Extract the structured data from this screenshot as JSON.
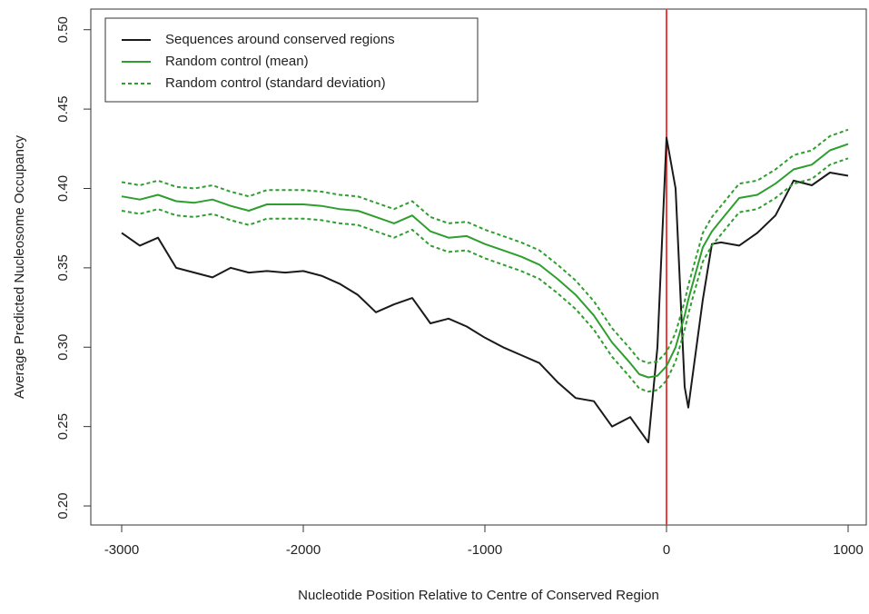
{
  "chart_data": {
    "type": "line",
    "xlabel": "Nucleotide Position Relative to Centre of Conserved Region",
    "ylabel": "Average Predicted Nucleosome Occupancy",
    "x": [
      -3000,
      -2900,
      -2800,
      -2700,
      -2600,
      -2500,
      -2400,
      -2300,
      -2200,
      -2100,
      -2000,
      -1900,
      -1800,
      -1700,
      -1600,
      -1500,
      -1400,
      -1300,
      -1200,
      -1100,
      -1000,
      -900,
      -800,
      -700,
      -600,
      -500,
      -400,
      -300,
      -200,
      -150,
      -100,
      -50,
      0,
      50,
      100,
      120,
      200,
      250,
      300,
      400,
      500,
      600,
      700,
      800,
      900,
      1000
    ],
    "series": [
      {
        "name": "Sequences around conserved regions",
        "color": "#1a1a1a",
        "dash": false,
        "values": [
          0.372,
          0.364,
          0.369,
          0.35,
          0.347,
          0.344,
          0.35,
          0.347,
          0.348,
          0.347,
          0.348,
          0.345,
          0.34,
          0.333,
          0.322,
          0.327,
          0.331,
          0.315,
          0.318,
          0.313,
          0.306,
          0.3,
          0.295,
          0.29,
          0.278,
          0.268,
          0.266,
          0.25,
          0.256,
          0.248,
          0.24,
          0.3,
          0.432,
          0.4,
          0.275,
          0.262,
          0.33,
          0.365,
          0.366,
          0.364,
          0.372,
          0.383,
          0.405,
          0.402,
          0.41,
          0.408
        ]
      },
      {
        "name": "Random control (mean)",
        "color": "#2e9e2e",
        "dash": false,
        "values": [
          0.395,
          0.393,
          0.396,
          0.392,
          0.391,
          0.393,
          0.389,
          0.386,
          0.39,
          0.39,
          0.39,
          0.389,
          0.387,
          0.386,
          0.382,
          0.378,
          0.383,
          0.373,
          0.369,
          0.37,
          0.365,
          0.361,
          0.357,
          0.352,
          0.343,
          0.333,
          0.32,
          0.303,
          0.29,
          0.283,
          0.281,
          0.282,
          0.288,
          0.3,
          0.32,
          0.33,
          0.363,
          0.373,
          0.38,
          0.394,
          0.396,
          0.403,
          0.412,
          0.415,
          0.424,
          0.428
        ]
      },
      {
        "name": "Random control (standard deviation)",
        "color": "#2e9e2e",
        "dash": true,
        "values": [
          0.404,
          0.402,
          0.405,
          0.401,
          0.4,
          0.402,
          0.398,
          0.395,
          0.399,
          0.399,
          0.399,
          0.398,
          0.396,
          0.395,
          0.391,
          0.387,
          0.392,
          0.382,
          0.378,
          0.379,
          0.374,
          0.37,
          0.366,
          0.361,
          0.352,
          0.342,
          0.329,
          0.312,
          0.299,
          0.292,
          0.29,
          0.291,
          0.297,
          0.309,
          0.329,
          0.339,
          0.372,
          0.382,
          0.389,
          0.403,
          0.405,
          0.412,
          0.421,
          0.424,
          0.433,
          0.437
        ]
      },
      {
        "color": "#2e9e2e",
        "dash": true,
        "values": [
          0.386,
          0.384,
          0.387,
          0.383,
          0.382,
          0.384,
          0.38,
          0.377,
          0.381,
          0.381,
          0.381,
          0.38,
          0.378,
          0.377,
          0.373,
          0.369,
          0.374,
          0.364,
          0.36,
          0.361,
          0.356,
          0.352,
          0.348,
          0.343,
          0.334,
          0.324,
          0.311,
          0.294,
          0.281,
          0.274,
          0.272,
          0.273,
          0.279,
          0.291,
          0.311,
          0.321,
          0.354,
          0.364,
          0.371,
          0.385,
          0.387,
          0.394,
          0.403,
          0.406,
          0.415,
          0.419
        ]
      }
    ],
    "vline": {
      "x": 0,
      "color": "#f04040"
    },
    "xlim": [
      -3170,
      1105
    ],
    "ylim": [
      0.188,
      0.513
    ],
    "xticks": [
      -3000,
      -2000,
      -1000,
      0,
      1000
    ],
    "yticks": [
      {
        "value": 0.2,
        "label": "0.20"
      },
      0.25,
      {
        "value": 0.3,
        "label": "0.30"
      },
      0.35,
      {
        "value": 0.4,
        "label": "0.40"
      },
      0.45,
      {
        "value": 0.5,
        "label": "0.50"
      }
    ],
    "legend": "top-left"
  }
}
